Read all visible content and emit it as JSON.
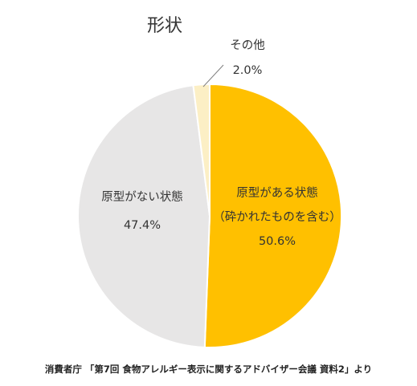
{
  "chart_data": {
    "type": "pie",
    "title": "形状",
    "slices": [
      {
        "label_lines": [
          "原型がある状態",
          "（砕かれたものを含む）"
        ],
        "value": 50.6,
        "value_text": "50.6%",
        "color": "#FFC000"
      },
      {
        "label_lines": [
          "原型がない状態"
        ],
        "value": 47.4,
        "value_text": "47.4%",
        "color": "#E7E6E6"
      },
      {
        "label_lines": [
          "その他"
        ],
        "value": 2.0,
        "value_text": "2.0%",
        "color": "#FCEFC5"
      }
    ],
    "start_angle": "12 o'clock",
    "direction": "clockwise",
    "source": "消費者庁 「第7回 食物アレルギー表示に関するアドバイザー会議 資料2」より"
  }
}
